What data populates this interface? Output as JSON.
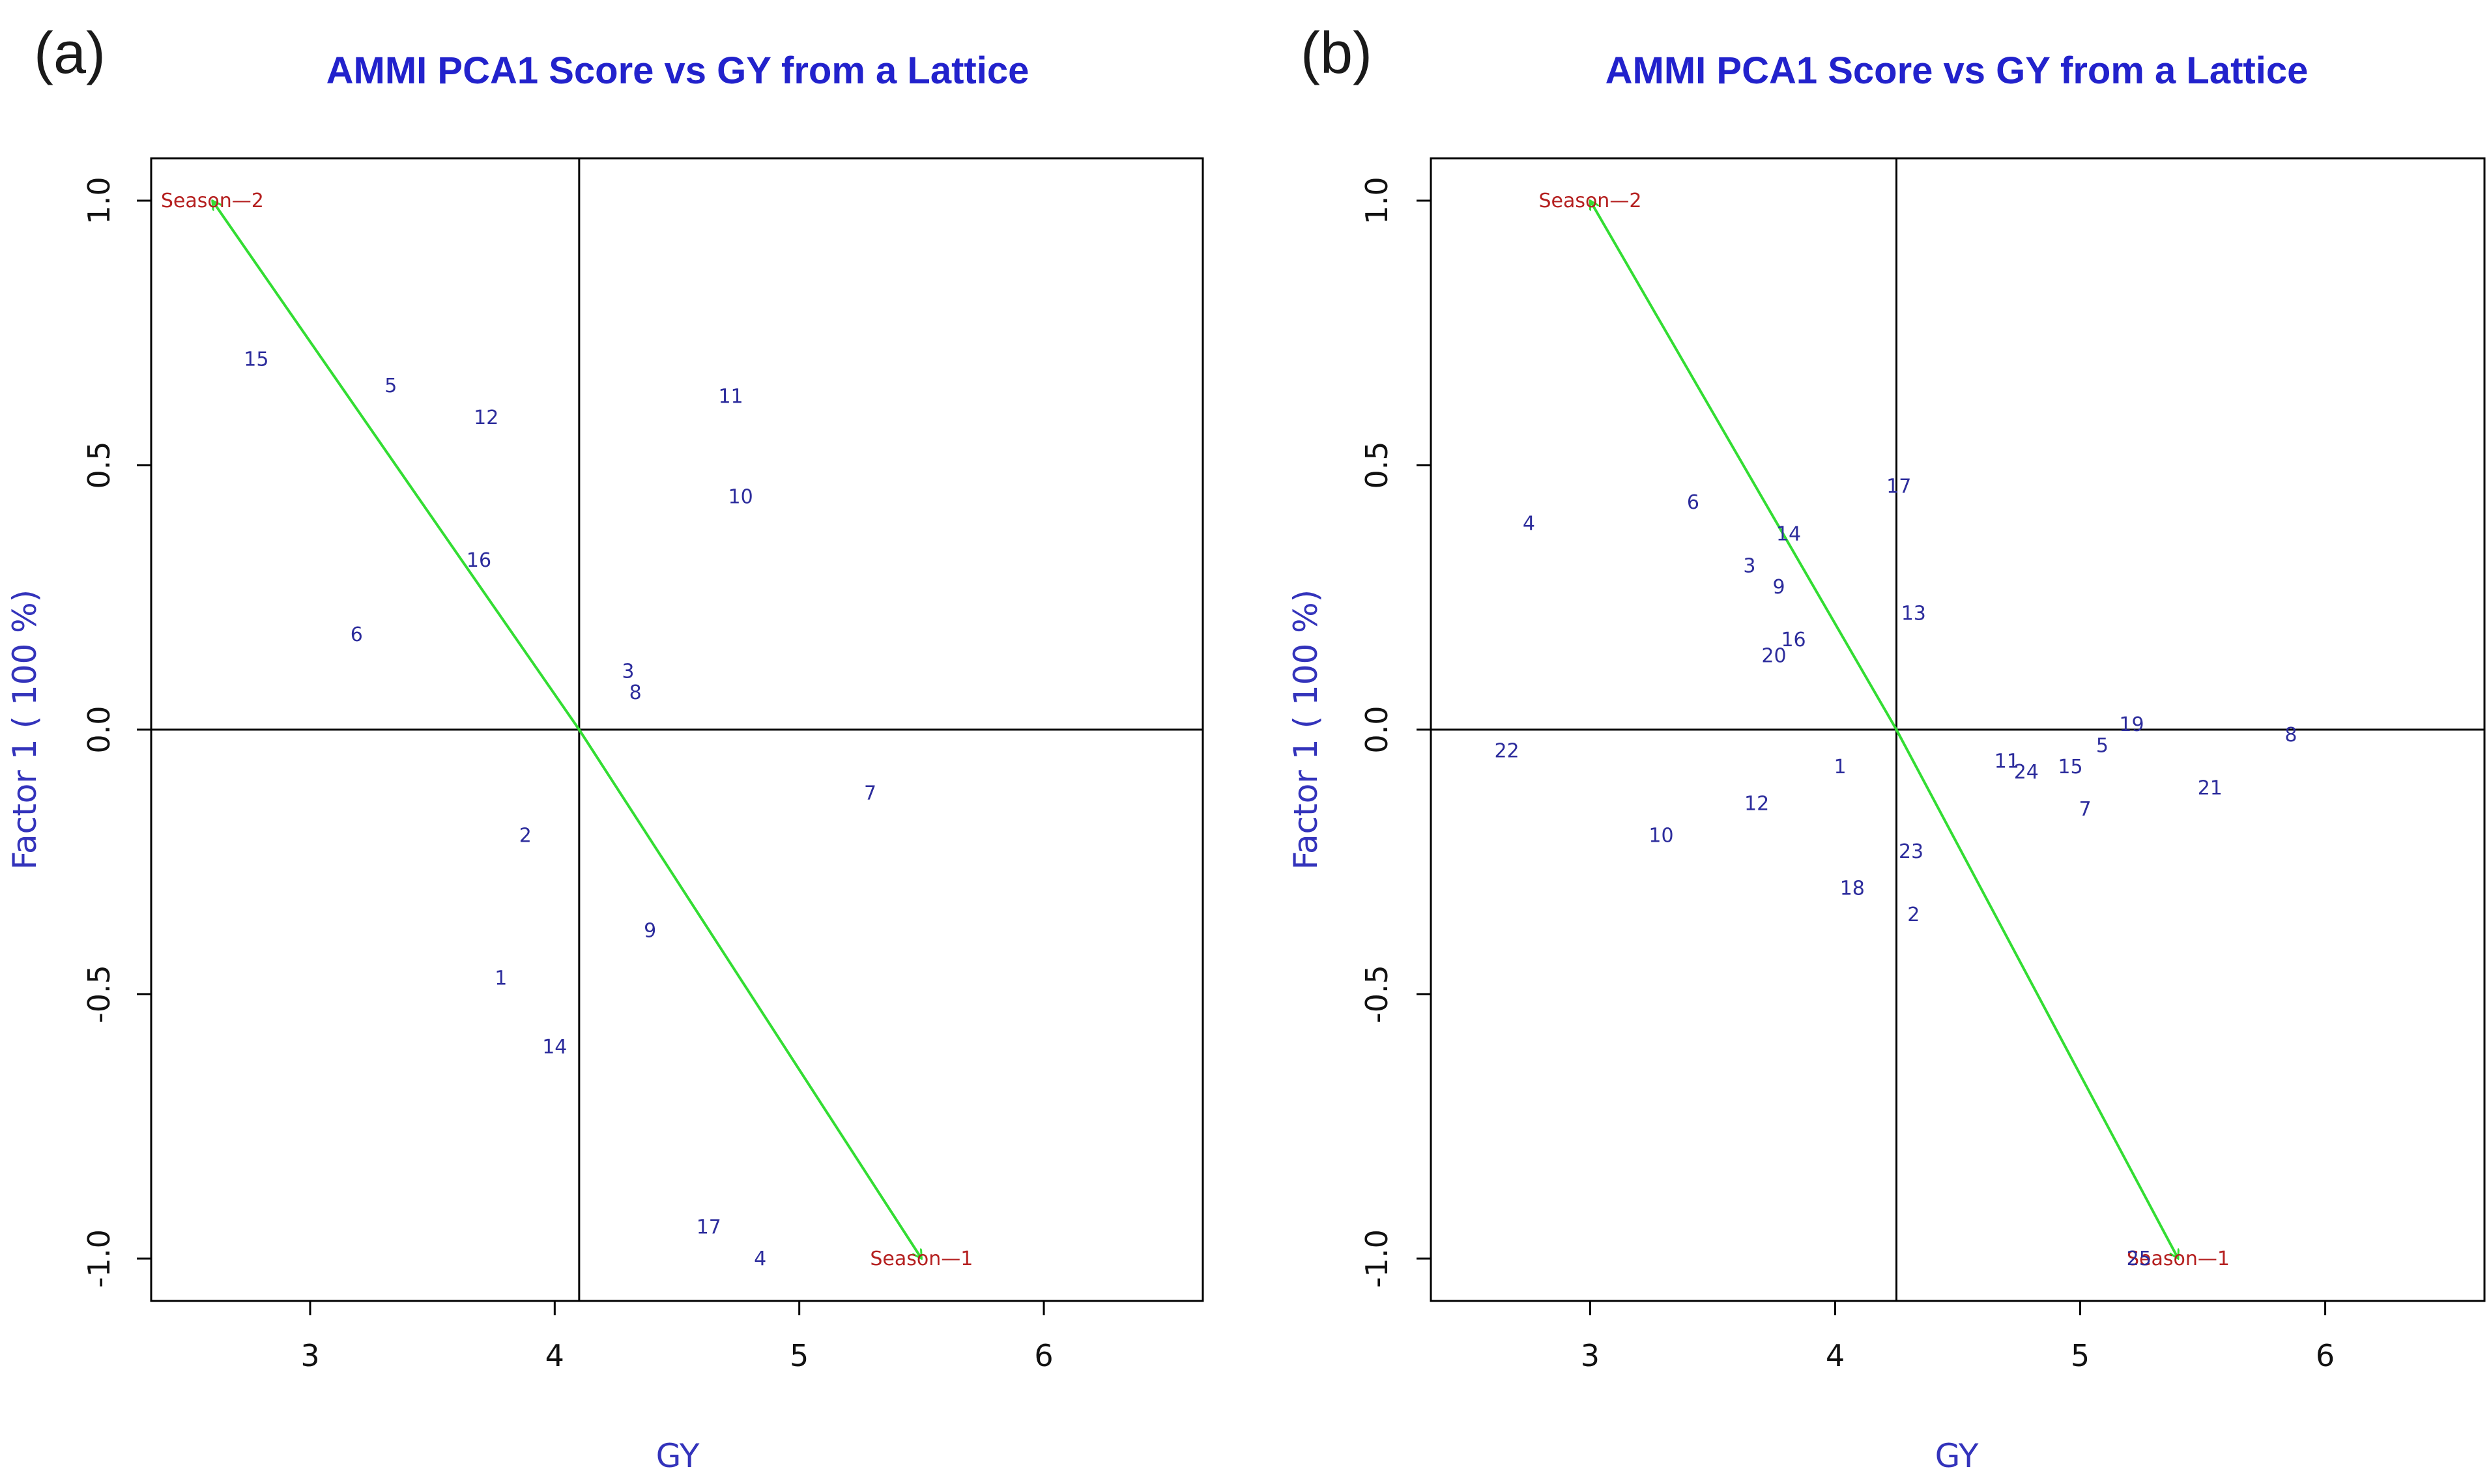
{
  "chart_data": [
    {
      "panel": "(a)",
      "type": "scatter",
      "title": "AMMI PCA1 Score vs GY from a Lattice",
      "xlabel": "GY",
      "ylabel": "Factor 1  ( 100 %)",
      "xlim": [
        2.35,
        6.65
      ],
      "ylim": [
        -1.08,
        1.08
      ],
      "xticks": [
        "3",
        "4",
        "5",
        "6"
      ],
      "yticks": [
        "-1.0",
        "-0.5",
        "0.0",
        "0.5",
        "1.0"
      ],
      "mean_gy": 4.1,
      "points": [
        {
          "label": "15",
          "x": 2.78,
          "y": 0.7
        },
        {
          "label": "5",
          "x": 3.33,
          "y": 0.65
        },
        {
          "label": "12",
          "x": 3.72,
          "y": 0.59
        },
        {
          "label": "11",
          "x": 4.72,
          "y": 0.63
        },
        {
          "label": "10",
          "x": 4.76,
          "y": 0.44
        },
        {
          "label": "16",
          "x": 3.69,
          "y": 0.32
        },
        {
          "label": "6",
          "x": 3.19,
          "y": 0.18
        },
        {
          "label": "3",
          "x": 4.3,
          "y": 0.11
        },
        {
          "label": "8",
          "x": 4.33,
          "y": 0.07
        },
        {
          "label": "7",
          "x": 5.29,
          "y": -0.12
        },
        {
          "label": "2",
          "x": 3.88,
          "y": -0.2
        },
        {
          "label": "9",
          "x": 4.39,
          "y": -0.38
        },
        {
          "label": "1",
          "x": 3.78,
          "y": -0.47
        },
        {
          "label": "14",
          "x": 4.0,
          "y": -0.6
        },
        {
          "label": "17",
          "x": 4.63,
          "y": -0.94
        },
        {
          "label": "4",
          "x": 4.84,
          "y": -1.0
        }
      ],
      "environments": [
        {
          "label": "Season—2",
          "x": 2.6,
          "y": 1.0
        },
        {
          "label": "Season—1",
          "x": 5.5,
          "y": -1.0
        }
      ]
    },
    {
      "panel": "(b)",
      "type": "scatter",
      "title": "AMMI PCA1 Score vs GY from a Lattice",
      "xlabel": "GY",
      "ylabel": "Factor 1  ( 100 %)",
      "xlim": [
        2.35,
        6.65
      ],
      "ylim": [
        -1.08,
        1.08
      ],
      "xticks": [
        "3",
        "4",
        "5",
        "6"
      ],
      "yticks": [
        "-1.0",
        "-0.5",
        "0.0",
        "0.5",
        "1.0"
      ],
      "mean_gy": 4.25,
      "points": [
        {
          "label": "4",
          "x": 2.75,
          "y": 0.39
        },
        {
          "label": "6",
          "x": 3.42,
          "y": 0.43
        },
        {
          "label": "17",
          "x": 4.26,
          "y": 0.46
        },
        {
          "label": "14",
          "x": 3.81,
          "y": 0.37
        },
        {
          "label": "3",
          "x": 3.65,
          "y": 0.31
        },
        {
          "label": "9",
          "x": 3.77,
          "y": 0.27
        },
        {
          "label": "13",
          "x": 4.32,
          "y": 0.22
        },
        {
          "label": "16",
          "x": 3.83,
          "y": 0.17
        },
        {
          "label": "20",
          "x": 3.75,
          "y": 0.14
        },
        {
          "label": "19",
          "x": 5.21,
          "y": 0.01
        },
        {
          "label": "5",
          "x": 5.09,
          "y": -0.03
        },
        {
          "label": "8",
          "x": 5.86,
          "y": -0.01
        },
        {
          "label": "22",
          "x": 2.66,
          "y": -0.04
        },
        {
          "label": "11",
          "x": 4.7,
          "y": -0.06
        },
        {
          "label": "24",
          "x": 4.78,
          "y": -0.08
        },
        {
          "label": "15",
          "x": 4.96,
          "y": -0.07
        },
        {
          "label": "1",
          "x": 4.02,
          "y": -0.07
        },
        {
          "label": "21",
          "x": 5.53,
          "y": -0.11
        },
        {
          "label": "12",
          "x": 3.68,
          "y": -0.14
        },
        {
          "label": "7",
          "x": 5.02,
          "y": -0.15
        },
        {
          "label": "10",
          "x": 3.29,
          "y": -0.2
        },
        {
          "label": "23",
          "x": 4.31,
          "y": -0.23
        },
        {
          "label": "18",
          "x": 4.07,
          "y": -0.3
        },
        {
          "label": "2",
          "x": 4.32,
          "y": -0.35
        },
        {
          "label": "25",
          "x": 5.24,
          "y": -1.0
        }
      ],
      "environments": [
        {
          "label": "Season—2",
          "x": 3.0,
          "y": 1.0
        },
        {
          "label": "Season—1",
          "x": 5.4,
          "y": -1.0
        }
      ]
    }
  ]
}
